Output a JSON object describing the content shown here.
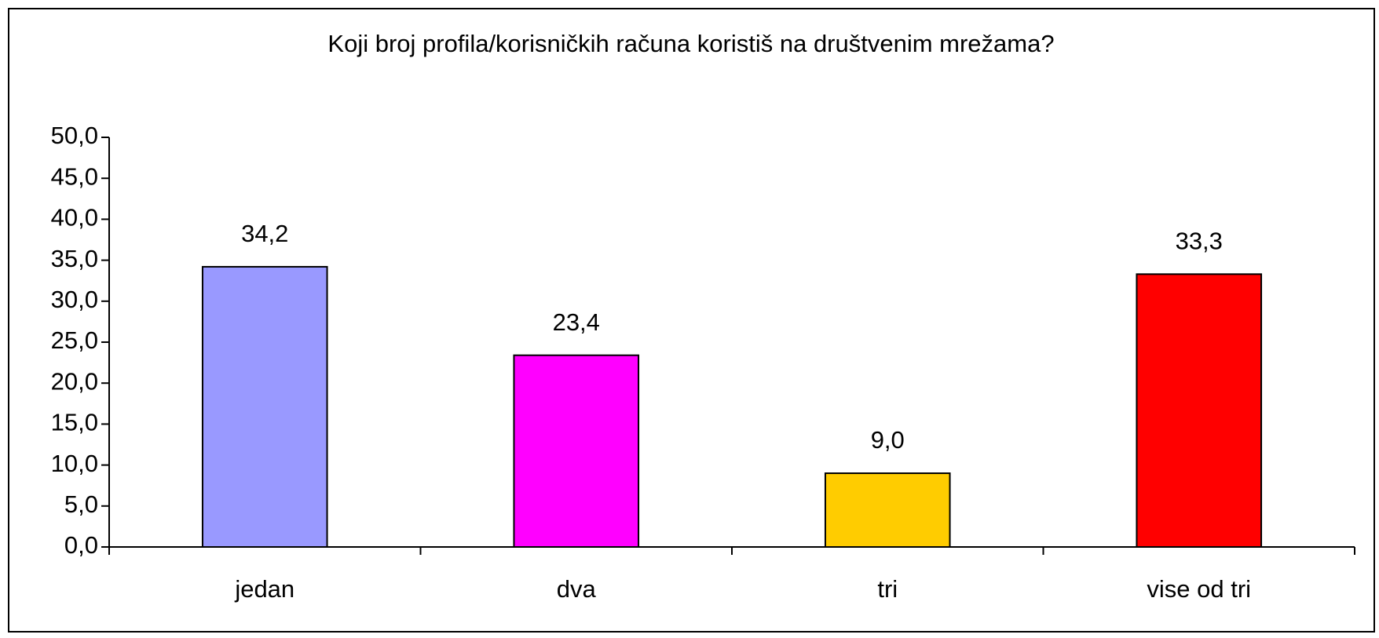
{
  "chart_data": {
    "type": "bar",
    "title": "Koji broj profila/korisničkih računa koristiš na društvenim mrežama?",
    "categories": [
      "jedan",
      "dva",
      "tri",
      "vise od tri"
    ],
    "values": [
      34.2,
      23.4,
      9.0,
      33.3
    ],
    "value_labels": [
      "34,2",
      "23,4",
      "9,0",
      "33,3"
    ],
    "colors": [
      "#9999ff",
      "#ff00ff",
      "#ffcc00",
      "#ff0000"
    ],
    "ylim": [
      0,
      50
    ],
    "yticks": [
      {
        "value": 0,
        "label": "0,0"
      },
      {
        "value": 5,
        "label": "5,0"
      },
      {
        "value": 10,
        "label": "10,0"
      },
      {
        "value": 15,
        "label": "15,0"
      },
      {
        "value": 20,
        "label": "20,0"
      },
      {
        "value": 25,
        "label": "25,0"
      },
      {
        "value": 30,
        "label": "30,0"
      },
      {
        "value": 35,
        "label": "35,0"
      },
      {
        "value": 40,
        "label": "40,0"
      },
      {
        "value": 45,
        "label": "45,0"
      },
      {
        "value": 50,
        "label": "50,0"
      }
    ],
    "grid": false
  }
}
